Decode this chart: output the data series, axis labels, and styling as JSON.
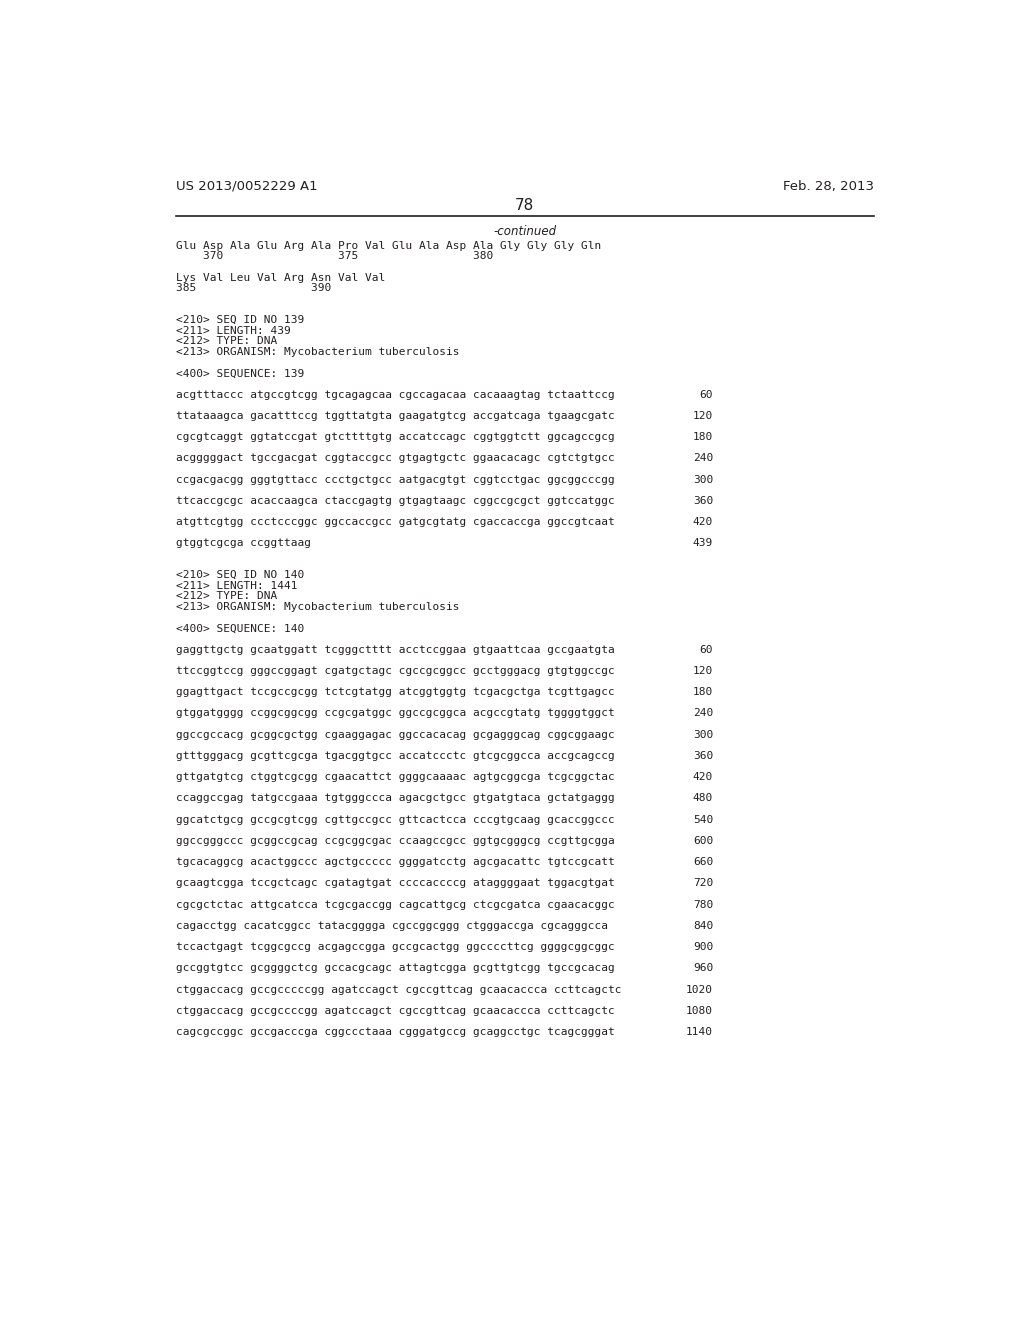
{
  "header_left": "US 2013/0052229 A1",
  "header_right": "Feb. 28, 2013",
  "page_number": "78",
  "continued_label": "-continued",
  "background_color": "#ffffff",
  "text_color": "#231f20",
  "content": [
    {
      "type": "seq_line",
      "text": "Glu Asp Ala Glu Arg Ala Pro Val Glu Ala Asp Ala Gly Gly Gly Gln"
    },
    {
      "type": "num_line",
      "text": "    370                 375                 380"
    },
    {
      "type": "blank"
    },
    {
      "type": "seq_line",
      "text": "Lys Val Leu Val Arg Asn Val Val"
    },
    {
      "type": "num_line",
      "text": "385                 390"
    },
    {
      "type": "blank"
    },
    {
      "type": "blank"
    },
    {
      "type": "meta",
      "text": "<210> SEQ ID NO 139"
    },
    {
      "type": "meta",
      "text": "<211> LENGTH: 439"
    },
    {
      "type": "meta",
      "text": "<212> TYPE: DNA"
    },
    {
      "type": "meta",
      "text": "<213> ORGANISM: Mycobacterium tuberculosis"
    },
    {
      "type": "blank"
    },
    {
      "type": "meta",
      "text": "<400> SEQUENCE: 139"
    },
    {
      "type": "blank"
    },
    {
      "type": "dna_line",
      "seq": "acgtttaccc atgccgtcgg tgcagagcaa cgccagacaa cacaaagtag tctaattccg",
      "num": "60"
    },
    {
      "type": "blank"
    },
    {
      "type": "dna_line",
      "seq": "ttataaagca gacatttccg tggttatgta gaagatgtcg accgatcaga tgaagcgatc",
      "num": "120"
    },
    {
      "type": "blank"
    },
    {
      "type": "dna_line",
      "seq": "cgcgtcaggt ggtatccgat gtcttttgtg accatccagc cggtggtctt ggcagccgcg",
      "num": "180"
    },
    {
      "type": "blank"
    },
    {
      "type": "dna_line",
      "seq": "acgggggact tgccgacgat cggtaccgcc gtgagtgctc ggaacacagc cgtctgtgcc",
      "num": "240"
    },
    {
      "type": "blank"
    },
    {
      "type": "dna_line",
      "seq": "ccgacgacgg gggtgttacc ccctgctgcc aatgacgtgt cggtcctgac ggcggcccgg",
      "num": "300"
    },
    {
      "type": "blank"
    },
    {
      "type": "dna_line",
      "seq": "ttcaccgcgc acaccaagca ctaccgagtg gtgagtaagc cggccgcgct ggtccatggc",
      "num": "360"
    },
    {
      "type": "blank"
    },
    {
      "type": "dna_line",
      "seq": "atgttcgtgg ccctcccggc ggccaccgcc gatgcgtatg cgaccaccga ggccgtcaat",
      "num": "420"
    },
    {
      "type": "blank"
    },
    {
      "type": "dna_line",
      "seq": "gtggtcgcga ccggttaag",
      "num": "439"
    },
    {
      "type": "blank"
    },
    {
      "type": "blank"
    },
    {
      "type": "meta",
      "text": "<210> SEQ ID NO 140"
    },
    {
      "type": "meta",
      "text": "<211> LENGTH: 1441"
    },
    {
      "type": "meta",
      "text": "<212> TYPE: DNA"
    },
    {
      "type": "meta",
      "text": "<213> ORGANISM: Mycobacterium tuberculosis"
    },
    {
      "type": "blank"
    },
    {
      "type": "meta",
      "text": "<400> SEQUENCE: 140"
    },
    {
      "type": "blank"
    },
    {
      "type": "dna_line",
      "seq": "gaggttgctg gcaatggatt tcgggctttt acctccggaa gtgaattcaa gccgaatgta",
      "num": "60"
    },
    {
      "type": "blank"
    },
    {
      "type": "dna_line",
      "seq": "ttccggtccg gggccggagt cgatgctagc cgccgcggcc gcctgggacg gtgtggccgc",
      "num": "120"
    },
    {
      "type": "blank"
    },
    {
      "type": "dna_line",
      "seq": "ggagttgact tccgccgcgg tctcgtatgg atcggtggtg tcgacgctga tcgttgagcc",
      "num": "180"
    },
    {
      "type": "blank"
    },
    {
      "type": "dna_line",
      "seq": "gtggatgggg ccggcggcgg ccgcgatggc ggccgcggca acgccgtatg tggggtggct",
      "num": "240"
    },
    {
      "type": "blank"
    },
    {
      "type": "dna_line",
      "seq": "ggccgccacg gcggcgctgg cgaaggagac ggccacacag gcgagggcag cggcggaagc",
      "num": "300"
    },
    {
      "type": "blank"
    },
    {
      "type": "dna_line",
      "seq": "gtttgggacg gcgttcgcga tgacggtgcc accatccctc gtcgcggcca accgcagccg",
      "num": "360"
    },
    {
      "type": "blank"
    },
    {
      "type": "dna_line",
      "seq": "gttgatgtcg ctggtcgcgg cgaacattct ggggcaaaac agtgcggcga tcgcggctac",
      "num": "420"
    },
    {
      "type": "blank"
    },
    {
      "type": "dna_line",
      "seq": "ccaggccgag tatgccgaaa tgtgggccca agacgctgcc gtgatgtaca gctatgaggg",
      "num": "480"
    },
    {
      "type": "blank"
    },
    {
      "type": "dna_line",
      "seq": "ggcatctgcg gccgcgtcgg cgttgccgcc gttcactcca cccgtgcaag gcaccggccc",
      "num": "540"
    },
    {
      "type": "blank"
    },
    {
      "type": "dna_line",
      "seq": "ggccgggccc gcggccgcag ccgcggcgac ccaagccgcc ggtgcgggcg ccgttgcgga",
      "num": "600"
    },
    {
      "type": "blank"
    },
    {
      "type": "dna_line",
      "seq": "tgcacaggcg acactggccc agctgccccc ggggatcctg agcgacattc tgtccgcatt",
      "num": "660"
    },
    {
      "type": "blank"
    },
    {
      "type": "dna_line",
      "seq": "gcaagtcgga tccgctcagc cgatagtgat ccccaccccg ataggggaat tggacgtgat",
      "num": "720"
    },
    {
      "type": "blank"
    },
    {
      "type": "dna_line",
      "seq": "cgcgctctac attgcatcca tcgcgaccgg cagcattgcg ctcgcgatca cgaacacggc",
      "num": "780"
    },
    {
      "type": "blank"
    },
    {
      "type": "dna_line",
      "seq": "cagacctgg cacatcggcc tatacgggga cgccggcggg ctgggaccga cgcagggcca",
      "num": "840"
    },
    {
      "type": "blank"
    },
    {
      "type": "dna_line",
      "seq": "tccactgagt tcggcgccg acgagccgga gccgcactgg ggccccttcg ggggcggcggc",
      "num": "900"
    },
    {
      "type": "blank"
    },
    {
      "type": "dna_line",
      "seq": "gccggtgtcc gcggggctcg gccacgcagc attagtcgga gcgttgtcgg tgccgcacag",
      "num": "960"
    },
    {
      "type": "blank"
    },
    {
      "type": "dna_line",
      "seq": "ctggaccacg gccgcccccgg agatccagct cgccgttcag gcaacaccca ccttcagctc",
      "num": "1020"
    },
    {
      "type": "blank"
    },
    {
      "type": "dna_line",
      "seq": "ctggaccacg gccgccccgg agatccagct cgccgttcag gcaacaccca ccttcagctc",
      "num": "1080"
    },
    {
      "type": "blank"
    },
    {
      "type": "dna_line",
      "seq": "cagcgccggc gccgacccga cggccctaaa cgggatgccg gcaggcctgc tcagcgggat",
      "num": "1140"
    }
  ]
}
